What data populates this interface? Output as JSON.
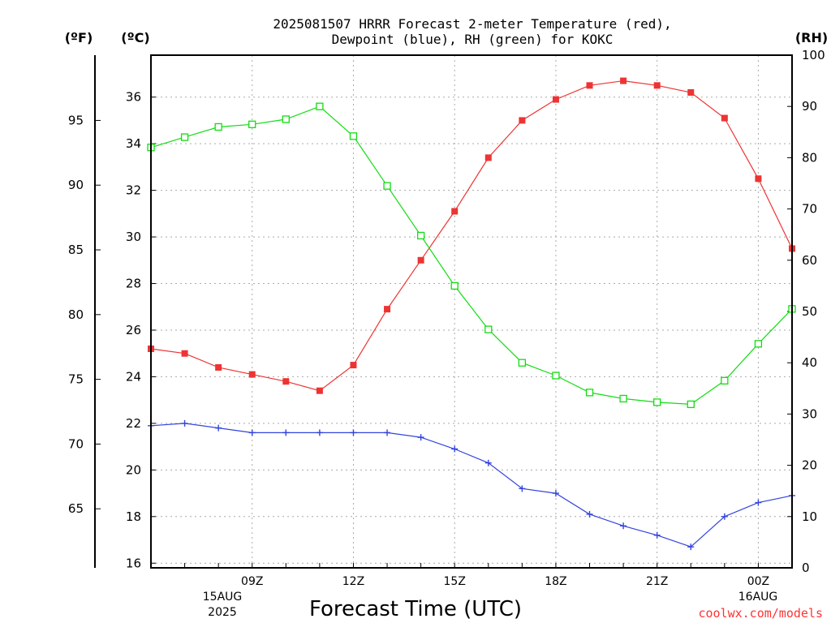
{
  "title_line1": "2025081507 HRRR Forecast 2-meter Temperature (red),",
  "title_line2": "Dewpoint (blue), RH (green) for KOKC",
  "unit_f": "(ºF)",
  "unit_c": "(ºC)",
  "unit_rh": "(RH)",
  "xlabel": "Forecast Time (UTC)",
  "credit": "coolwx.com/models",
  "date_left_line1": "15AUG",
  "date_left_line2": "2025",
  "date_right_line1": "16AUG",
  "colors": {
    "temperature": "#ee3333",
    "dewpoint": "#3344dd",
    "rh": "#11dd11"
  },
  "chart_data": {
    "type": "line",
    "x": [
      "06Z",
      "07Z",
      "08Z",
      "09Z",
      "10Z",
      "11Z",
      "12Z",
      "13Z",
      "14Z",
      "15Z",
      "16Z",
      "17Z",
      "18Z",
      "19Z",
      "20Z",
      "21Z",
      "22Z",
      "23Z",
      "00Z",
      "01Z"
    ],
    "x_tick_labels": [
      "09Z",
      "12Z",
      "15Z",
      "18Z",
      "21Z",
      "00Z"
    ],
    "y_left_c": {
      "range": [
        15.8,
        37.8
      ],
      "ticks": [
        16,
        18,
        20,
        22,
        24,
        26,
        28,
        30,
        32,
        34,
        36
      ]
    },
    "y_left_f": {
      "ticks": [
        65,
        70,
        75,
        80,
        85,
        90,
        95
      ]
    },
    "y_right_rh": {
      "range": [
        0,
        100
      ],
      "ticks": [
        0,
        10,
        20,
        30,
        40,
        50,
        60,
        70,
        80,
        90,
        100
      ]
    },
    "grid": true,
    "series": [
      {
        "key": "temperature",
        "axis": "C",
        "marker": "filled-square",
        "values": [
          25.2,
          25.0,
          24.4,
          24.1,
          23.8,
          23.4,
          24.5,
          26.9,
          29.0,
          31.1,
          33.4,
          35.0,
          35.9,
          36.5,
          36.7,
          36.5,
          36.2,
          35.1,
          32.5,
          29.5
        ]
      },
      {
        "key": "dewpoint",
        "axis": "C",
        "marker": "plus",
        "values": [
          21.9,
          22.0,
          21.8,
          21.6,
          21.6,
          21.6,
          21.6,
          21.6,
          21.4,
          20.9,
          20.3,
          19.2,
          19.0,
          18.1,
          17.6,
          17.2,
          16.7,
          18.0,
          18.6,
          18.9
        ]
      },
      {
        "key": "rh",
        "axis": "RH",
        "marker": "open-square",
        "values": [
          82,
          84,
          86,
          86.5,
          87.5,
          90,
          84.2,
          74.5,
          64.8,
          55,
          46.5,
          40,
          37.5,
          34.2,
          33,
          32.3,
          31.9,
          36.5,
          43.7,
          50.5
        ]
      }
    ]
  }
}
